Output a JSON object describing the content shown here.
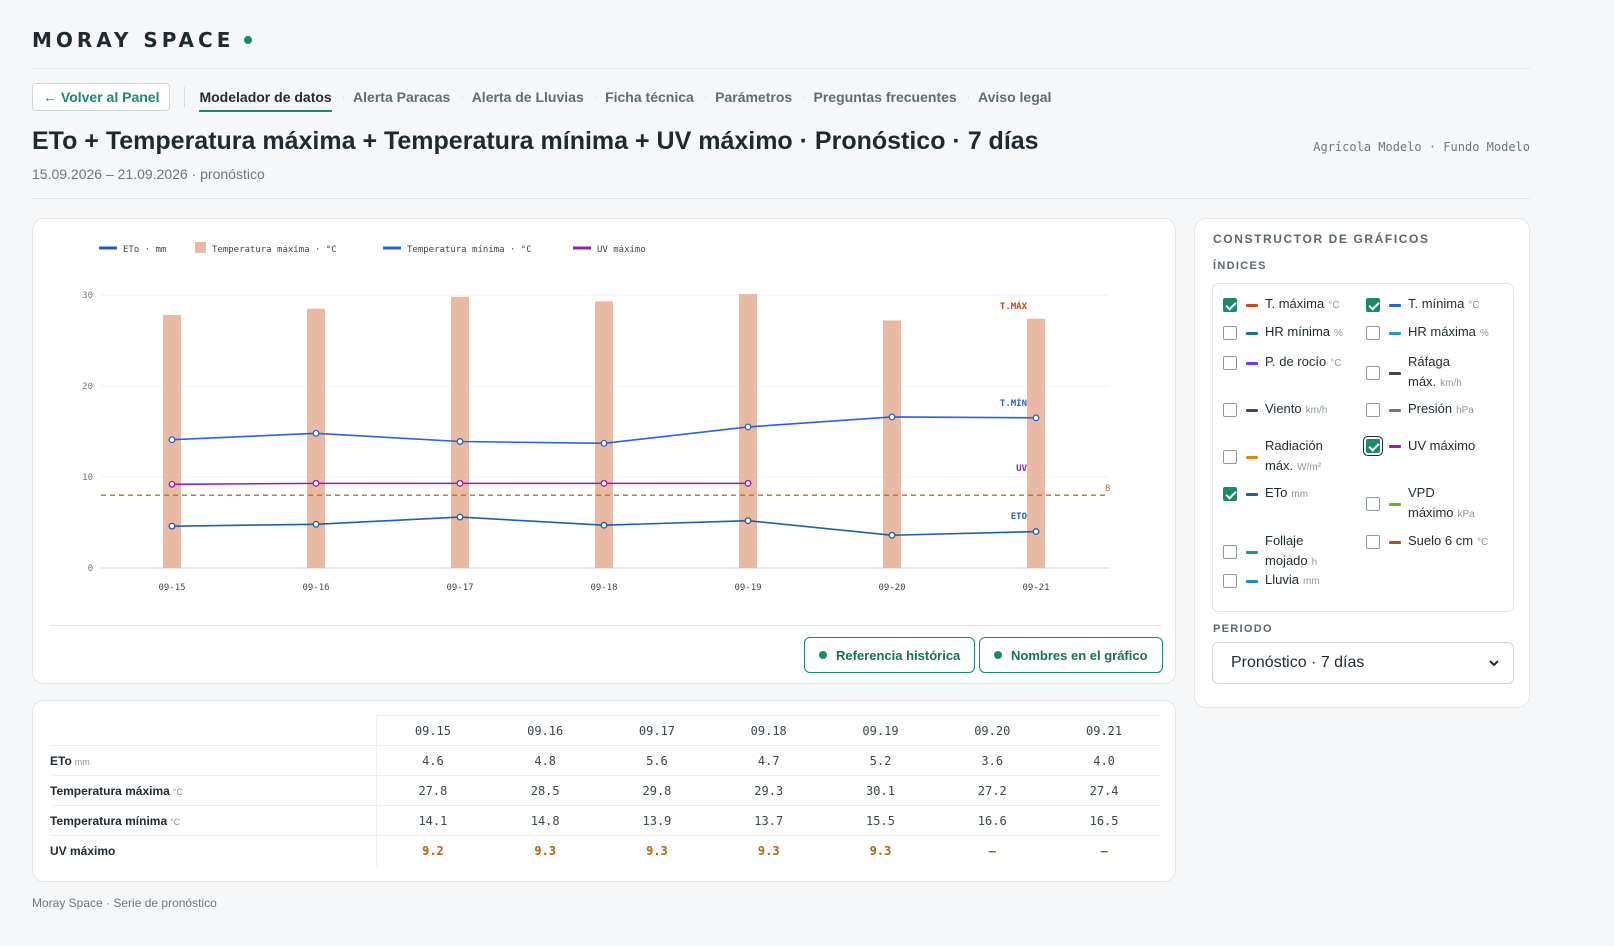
{
  "brand": {
    "name": "MORAY SPACE"
  },
  "nav": {
    "back": "← Volver al Panel",
    "items": [
      {
        "label": "Modelador de datos",
        "active": true
      },
      {
        "label": "Alerta Paracas"
      },
      {
        "label": "Alerta de Lluvias"
      },
      {
        "label": "Ficha técnica"
      },
      {
        "label": "Parámetros"
      },
      {
        "label": "Preguntas frecuentes"
      },
      {
        "label": "Aviso legal"
      }
    ]
  },
  "header": {
    "title": "ETo + Temperatura máxima + Temperatura mínima + UV máximo · Pronóstico · 7 días",
    "subtitle": "15.09.2026 – 21.09.2026 · pronóstico",
    "org": "Agrícola Modelo · Fundo Modelo"
  },
  "chart_data": {
    "type": "line",
    "categories": [
      "09-15",
      "09-16",
      "09-17",
      "09-18",
      "09-19",
      "09-20",
      "09-21"
    ],
    "ylim": [
      0,
      30
    ],
    "yticks": [
      "0",
      "10",
      "20",
      "30"
    ],
    "grid": true,
    "legend_position": "top-left",
    "reference_line": {
      "value": 8,
      "label": "8",
      "color": "#c8682a"
    },
    "series": [
      {
        "name": "ETo · mm",
        "type": "line",
        "color": "#1f5fa8",
        "end_label": "ETO",
        "values": [
          4.6,
          4.8,
          5.6,
          4.7,
          5.2,
          3.6,
          4.0
        ]
      },
      {
        "name": "Temperatura máxima · °C",
        "type": "bar",
        "color": "#e8b9a3",
        "end_label": "T.MÁX",
        "end_label_color": "#c0461a",
        "values": [
          27.8,
          28.5,
          29.8,
          29.3,
          30.1,
          27.2,
          27.4
        ]
      },
      {
        "name": "Temperatura mínima · °C",
        "type": "line",
        "color": "#2a62d8",
        "end_label": "T.MÍN",
        "values": [
          14.1,
          14.8,
          13.9,
          13.7,
          15.5,
          16.6,
          16.5
        ]
      },
      {
        "name": "UV máximo",
        "type": "line",
        "color": "#9b1fb2",
        "end_label": "UV",
        "values": [
          9.2,
          9.3,
          9.3,
          9.3,
          9.3,
          null,
          null
        ]
      }
    ]
  },
  "chips": [
    "Referencia histórica",
    "Nombres en el gráfico"
  ],
  "table": {
    "dates": [
      "09.15",
      "09.16",
      "09.17",
      "09.18",
      "09.19",
      "09.20",
      "09.21"
    ],
    "rows": [
      {
        "label": "ETo",
        "unit": "mm",
        "values": [
          "4.6",
          "4.8",
          "5.6",
          "4.7",
          "5.2",
          "3.6",
          "4.0"
        ]
      },
      {
        "label": "Temperatura máxima",
        "unit": "°C",
        "values": [
          "27.8",
          "28.5",
          "29.8",
          "29.3",
          "30.1",
          "27.2",
          "27.4"
        ]
      },
      {
        "label": "Temperatura mínima",
        "unit": "°C",
        "values": [
          "14.1",
          "14.8",
          "13.9",
          "13.7",
          "15.5",
          "16.6",
          "16.5"
        ]
      },
      {
        "label": "UV máximo",
        "unit": "",
        "uv": true,
        "values": [
          "9.2",
          "9.3",
          "9.3",
          "9.3",
          "9.3",
          "–",
          "–"
        ]
      }
    ]
  },
  "footer": "Moray Space · Serie de pronóstico",
  "sidebar": {
    "title": "CONSTRUCTOR DE GRÁFICOS",
    "indices_label": "ÍNDICES",
    "indices": [
      {
        "line1": "T. máxima",
        "unit": "°C",
        "color": "#d0461a",
        "checked": true
      },
      {
        "line1": "T. mínima",
        "unit": "°C",
        "color": "#2a62d8",
        "checked": true
      },
      {
        "line1": "HR mínima",
        "unit": "%",
        "color": "#157a8a",
        "checked": false
      },
      {
        "line1": "HR máxima",
        "unit": "%",
        "color": "#1aa0b0",
        "checked": false
      },
      {
        "line1": "P. de rocío",
        "unit": "°C",
        "color": "#7a3ad8",
        "checked": false
      },
      {
        "line1": "Ráfaga",
        "line2": "máx.",
        "unit": "km/h",
        "color": "#3b464b",
        "checked": false
      },
      {
        "line1": "Viento",
        "unit": "km/h",
        "color": "#3b4a6b",
        "checked": false
      },
      {
        "line1": "Presión",
        "unit": "hPa",
        "color": "#6b777d",
        "checked": false
      },
      {
        "line1": "Radiación",
        "line2": "máx.",
        "unit": "W/m²",
        "color": "#d88a1a",
        "checked": false
      },
      {
        "line1": "UV máximo",
        "unit": "",
        "color": "#9b1fb2",
        "checked": true,
        "focus": true
      },
      {
        "line1": "ETo",
        "unit": "mm",
        "color": "#1f5fa8",
        "checked": true
      },
      {
        "line1": "VPD",
        "line2": "máximo",
        "unit": "kPa",
        "color": "#6ab020",
        "checked": false
      },
      {
        "line1": "Follaje",
        "line2": "mojado",
        "unit": "h",
        "color": "#1a9a8a",
        "checked": false
      },
      {
        "line1": "Suelo 6 cm",
        "unit": "°C",
        "color": "#b0501a",
        "checked": false
      },
      {
        "line1": "Lluvia",
        "unit": "mm",
        "color": "#1a8ad8",
        "checked": false
      }
    ],
    "period_label": "PERIODO",
    "period_value": "Pronóstico · 7 días"
  }
}
